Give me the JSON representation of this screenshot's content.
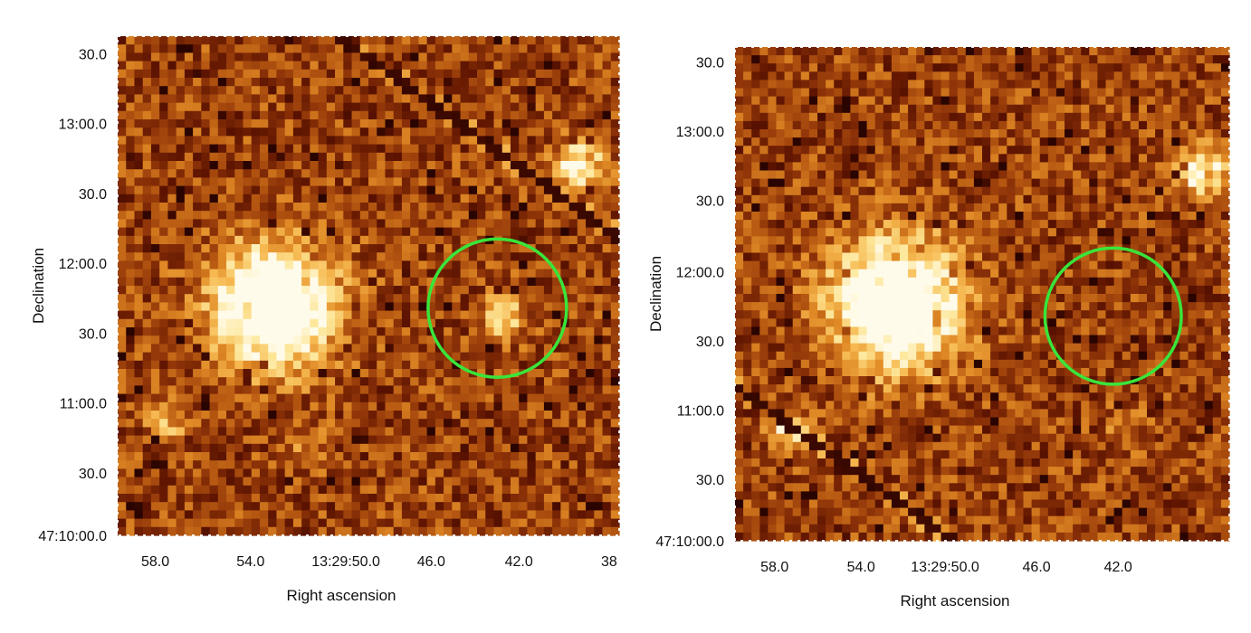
{
  "figure": {
    "colormap": [
      "#2a0400",
      "#5a1200",
      "#8c3208",
      "#b85a12",
      "#e08a26",
      "#f6b850",
      "#fde79a",
      "#fffbea"
    ],
    "marker_color": "#39e53a",
    "panels": [
      {
        "id": "left",
        "xlabel": "Right ascension",
        "ylabel": "Declination",
        "x_ticks": [
          "58.0",
          "54.0",
          "13:29:50.0",
          "46.0",
          "42.0",
          "38"
        ],
        "y_ticks": [
          "30.0",
          "13:00.0",
          "30.0",
          "12:00.0",
          "30.0",
          "11:00.0",
          "30.0",
          "47:10:00.0"
        ]
      },
      {
        "id": "right",
        "xlabel": "Right ascension",
        "ylabel": "Declination",
        "x_ticks": [
          "58.0",
          "54.0",
          "13:29:50.0",
          "46.0",
          "42.0"
        ],
        "y_ticks": [
          "30.0",
          "13:00.0",
          "30.0",
          "12:00.0",
          "30.0",
          "11:00.0",
          "30.0",
          "47:10:00.0"
        ]
      }
    ]
  }
}
